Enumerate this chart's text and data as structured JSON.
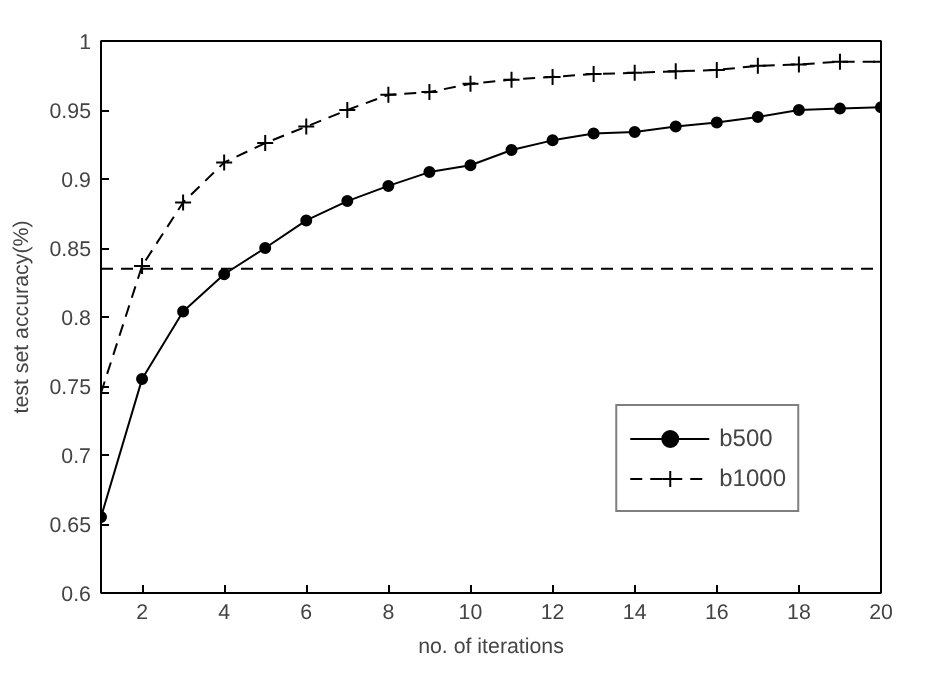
{
  "chart_data": {
    "type": "line",
    "xlabel": "no. of iterations",
    "ylabel": "test set accuracy(%)",
    "x": [
      1,
      2,
      3,
      4,
      5,
      6,
      7,
      8,
      9,
      10,
      11,
      12,
      13,
      14,
      15,
      16,
      17,
      18,
      19,
      20
    ],
    "series": [
      {
        "name": "b500",
        "color": "#000000",
        "marker": "circle",
        "line_style": "solid",
        "values": [
          0.655,
          0.755,
          0.804,
          0.831,
          0.85,
          0.87,
          0.884,
          0.895,
          0.905,
          0.91,
          0.921,
          0.928,
          0.933,
          0.934,
          0.938,
          0.941,
          0.945,
          0.95,
          0.951,
          0.952
        ]
      },
      {
        "name": "b1000",
        "color": "#000000",
        "marker": "cross",
        "line_style": "dashed",
        "values": [
          0.745,
          0.837,
          0.883,
          0.912,
          0.926,
          0.938,
          0.95,
          0.961,
          0.963,
          0.969,
          0.972,
          0.974,
          0.976,
          0.977,
          0.978,
          0.979,
          0.982,
          0.983,
          0.985,
          0.985
        ]
      }
    ],
    "ref_lines": [
      {
        "axis": "y",
        "value": 0.835,
        "color": "#000000",
        "line_style": "dashed"
      }
    ],
    "xlim": [
      1,
      20
    ],
    "xticks": [
      2,
      4,
      6,
      8,
      10,
      12,
      14,
      16,
      18,
      20
    ],
    "ylim": [
      0.6,
      1
    ],
    "yticks": [
      0.6,
      0.65,
      0.7,
      0.75,
      0.8,
      0.85,
      0.9,
      0.95,
      1
    ],
    "grid": false,
    "legend": "bottom right"
  }
}
